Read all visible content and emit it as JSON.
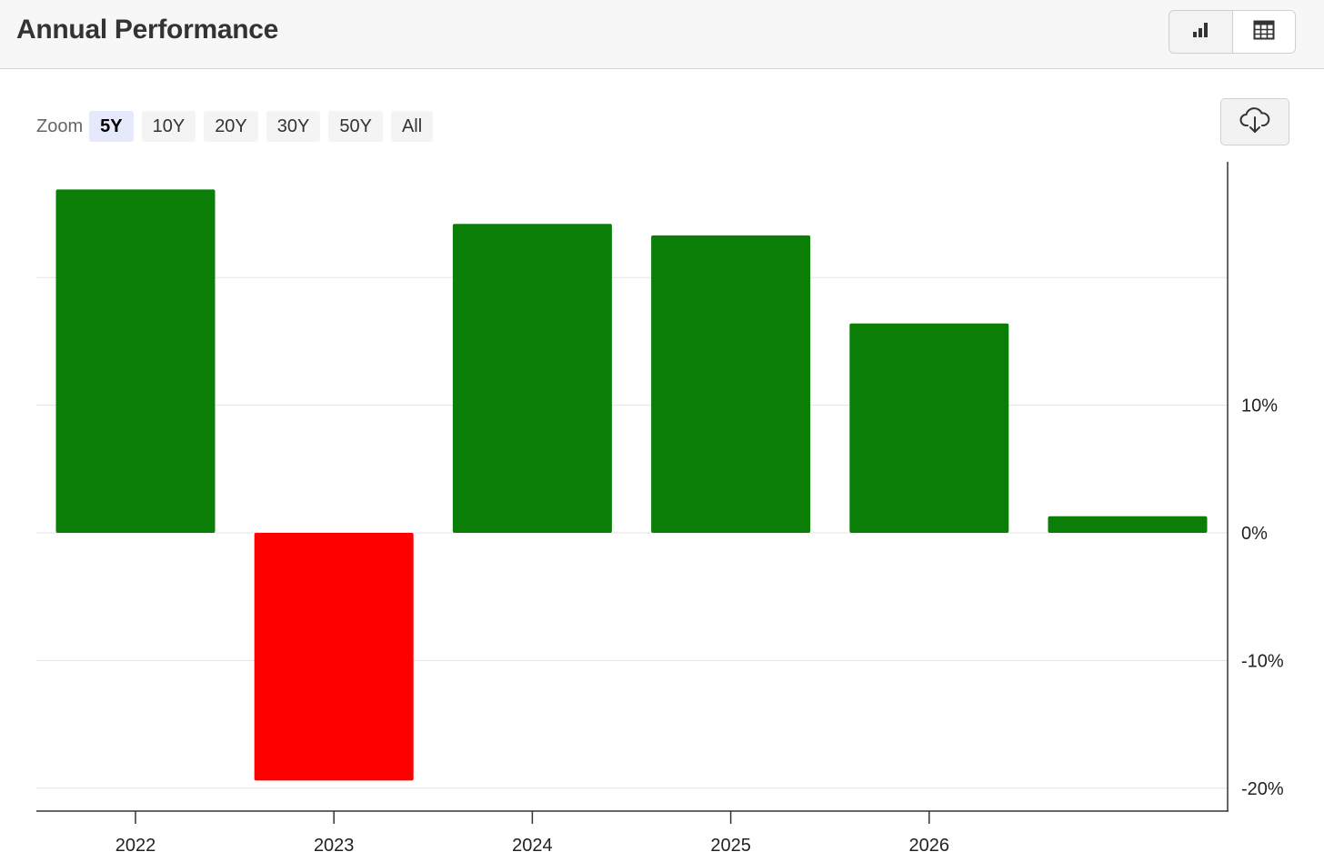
{
  "header": {
    "title": "Annual Performance",
    "chart_view_icon": "bar-chart-icon",
    "table_view_icon": "table-icon"
  },
  "zoom": {
    "label": "Zoom",
    "options": [
      "5Y",
      "10Y",
      "20Y",
      "30Y",
      "50Y",
      "All"
    ],
    "selected": "5Y"
  },
  "download": {
    "icon": "cloud-download-icon"
  },
  "colors": {
    "positive": "#0a7e07",
    "negative": "#ff0000",
    "grid": "#e3e3e3",
    "axis": "#333333"
  },
  "chart_data": {
    "type": "bar",
    "categories": [
      "2022",
      "2023",
      "2024",
      "2025",
      "2026",
      ""
    ],
    "values": [
      26.9,
      -19.4,
      24.2,
      23.3,
      16.4,
      1.3
    ],
    "x_tick_labels": [
      "2022",
      "2023",
      "2024",
      "2025",
      "2026"
    ],
    "y_tick_labels": [
      "10%",
      "0%",
      "-10%",
      "-20%"
    ],
    "y_ticks": [
      10,
      0,
      -10,
      -20
    ],
    "gridlines": [
      20,
      10,
      0,
      -10,
      -20
    ],
    "ylim": [
      -21.9,
      29.1
    ],
    "y_axis_position": "right",
    "grid": true,
    "legend": "none"
  }
}
